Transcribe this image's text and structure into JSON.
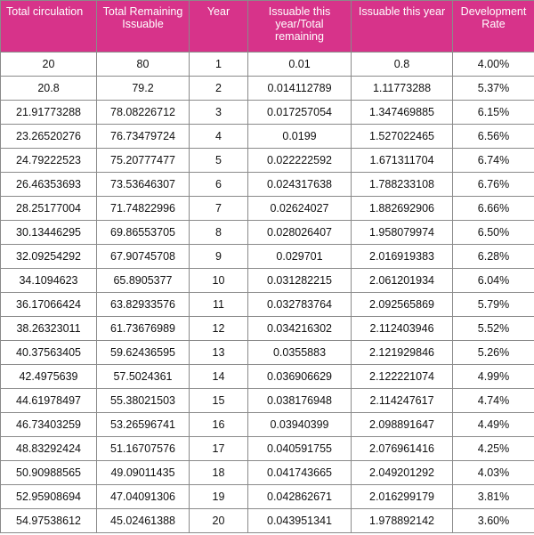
{
  "table": {
    "headers": [
      "Total circulation",
      "Total Remaining Issuable",
      "Year",
      "Issuable this year/Total remaining",
      "Issuable this year",
      "Development Rate"
    ],
    "colors": {
      "header_bg": "#d7338a",
      "header_text": "#ffffff",
      "border": "#8a8a8a"
    },
    "rows": [
      [
        "20",
        "80",
        "1",
        "0.01",
        "0.8",
        "4.00%"
      ],
      [
        "20.8",
        "79.2",
        "2",
        "0.014112789",
        "1.11773288",
        "5.37%"
      ],
      [
        "21.91773288",
        "78.08226712",
        "3",
        "0.017257054",
        "1.347469885",
        "6.15%"
      ],
      [
        "23.26520276",
        "76.73479724",
        "4",
        "0.0199",
        "1.527022465",
        "6.56%"
      ],
      [
        "24.79222523",
        "75.20777477",
        "5",
        "0.022222592",
        "1.671311704",
        "6.74%"
      ],
      [
        "26.46353693",
        "73.53646307",
        "6",
        "0.024317638",
        "1.788233108",
        "6.76%"
      ],
      [
        "28.25177004",
        "71.74822996",
        "7",
        "0.02624027",
        "1.882692906",
        "6.66%"
      ],
      [
        "30.13446295",
        "69.86553705",
        "8",
        "0.028026407",
        "1.958079974",
        "6.50%"
      ],
      [
        "32.09254292",
        "67.90745708",
        "9",
        "0.029701",
        "2.016919383",
        "6.28%"
      ],
      [
        "34.1094623",
        "65.8905377",
        "10",
        "0.031282215",
        "2.061201934",
        "6.04%"
      ],
      [
        "36.17066424",
        "63.82933576",
        "11",
        "0.032783764",
        "2.092565869",
        "5.79%"
      ],
      [
        "38.26323011",
        "61.73676989",
        "12",
        "0.034216302",
        "2.112403946",
        "5.52%"
      ],
      [
        "40.37563405",
        "59.62436595",
        "13",
        "0.0355883",
        "2.121929846",
        "5.26%"
      ],
      [
        "42.4975639",
        "57.5024361",
        "14",
        "0.036906629",
        "2.122221074",
        "4.99%"
      ],
      [
        "44.61978497",
        "55.38021503",
        "15",
        "0.038176948",
        "2.114247617",
        "4.74%"
      ],
      [
        "46.73403259",
        "53.26596741",
        "16",
        "0.03940399",
        "2.098891647",
        "4.49%"
      ],
      [
        "48.83292424",
        "51.16707576",
        "17",
        "0.040591755",
        "2.076961416",
        "4.25%"
      ],
      [
        "50.90988565",
        "49.09011435",
        "18",
        "0.041743665",
        "2.049201292",
        "4.03%"
      ],
      [
        "52.95908694",
        "47.04091306",
        "19",
        "0.042862671",
        "2.016299179",
        "3.81%"
      ],
      [
        "54.97538612",
        "45.02461388",
        "20",
        "0.043951341",
        "1.978892142",
        "3.60%"
      ]
    ]
  }
}
